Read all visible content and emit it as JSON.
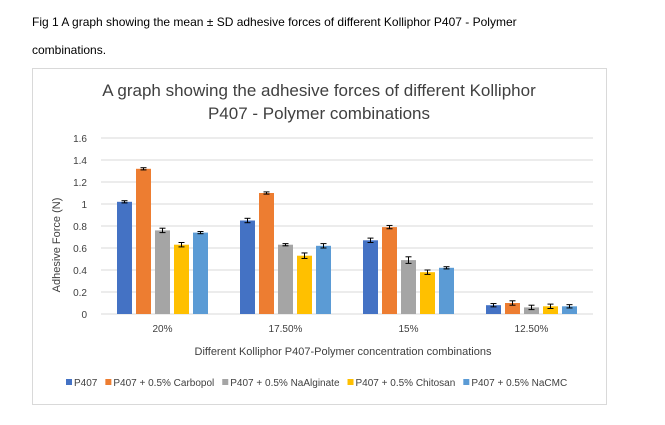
{
  "caption": {
    "line1": "Fig 1 A graph showing the mean ± SD adhesive forces of different Kolliphor P407 - Polymer",
    "line2": "combinations."
  },
  "chart_data": {
    "type": "bar",
    "title_line1": "A graph showing the adhesive forces of different Kolliphor",
    "title_line2": "P407 - Polymer combinations",
    "xlabel": "Different Kolliphor P407-Polymer concentration combinations",
    "ylabel": "Adhesive Force (N)",
    "ylim": [
      0,
      1.6
    ],
    "yticks": [
      "0",
      "0.2",
      "0.4",
      "0.6",
      "0.8",
      "1",
      "1.2",
      "1.4",
      "1.6"
    ],
    "grid": true,
    "legend_position": "bottom",
    "categories": [
      "20%",
      "17.50%",
      "15%",
      "12.50%"
    ],
    "series": [
      {
        "name": "P407",
        "color": "#4472c4",
        "values": [
          1.02,
          0.85,
          0.67,
          0.08
        ],
        "errors": [
          0.01,
          0.02,
          0.02,
          0.015
        ]
      },
      {
        "name": "P407 + 0.5% Carbopol",
        "color": "#ed7d31",
        "values": [
          1.32,
          1.1,
          0.79,
          0.1
        ],
        "errors": [
          0.01,
          0.01,
          0.015,
          0.02
        ]
      },
      {
        "name": "P407 + 0.5% NaAlginate",
        "color": "#a5a5a5",
        "values": [
          0.76,
          0.63,
          0.49,
          0.06
        ],
        "errors": [
          0.02,
          0.01,
          0.03,
          0.02
        ]
      },
      {
        "name": "P407 + 0.5% Chitosan",
        "color": "#ffc000",
        "values": [
          0.63,
          0.53,
          0.38,
          0.07
        ],
        "errors": [
          0.02,
          0.025,
          0.02,
          0.02
        ]
      },
      {
        "name": "P407 + 0.5% NaCMC",
        "color": "#5b9bd5",
        "values": [
          0.74,
          0.62,
          0.42,
          0.07
        ],
        "errors": [
          0.01,
          0.02,
          0.01,
          0.015
        ]
      }
    ]
  }
}
